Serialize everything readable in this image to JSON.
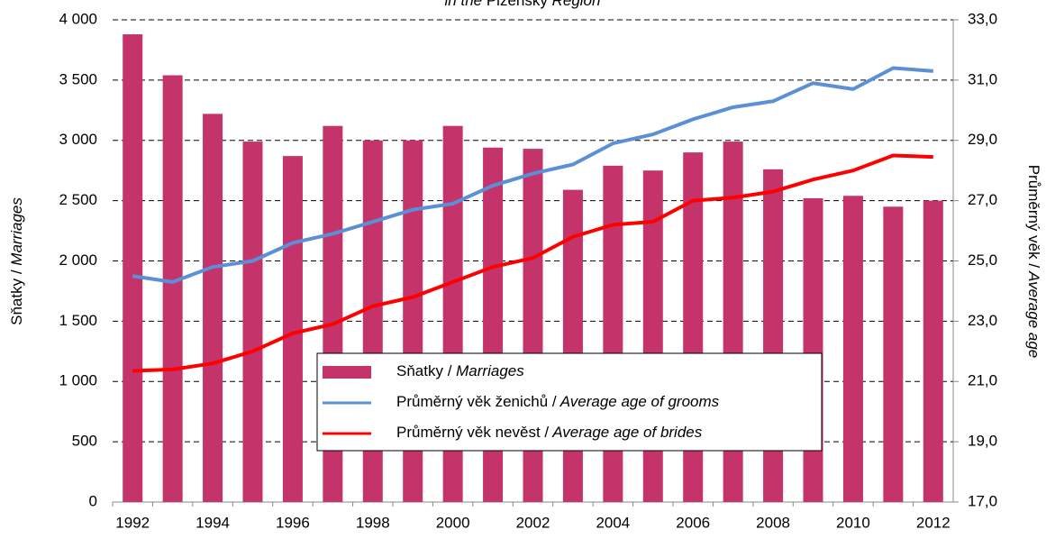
{
  "chart_data": {
    "type": "bar_line",
    "title": [
      "in the ",
      "Plzeňský ",
      "Region"
    ],
    "ylabel": "Sňatky / Marriages",
    "y2label": "Průměrný věk / Average  age",
    "categories": [
      "1992",
      null,
      "1994",
      null,
      "1996",
      null,
      "1998",
      null,
      "2000",
      null,
      "2002",
      null,
      "2004",
      null,
      "2006",
      null,
      "2008",
      null,
      "2010",
      null,
      "2012"
    ],
    "ylim": [
      0,
      4000
    ],
    "yticks": [
      0,
      500,
      {
        "value": 1000,
        "label": "1 000"
      },
      {
        "value": 1500,
        "label": "1 500"
      },
      {
        "value": 2000,
        "label": "2 000"
      },
      {
        "value": 2500,
        "label": "2 500"
      },
      {
        "value": 3000,
        "label": "3 000"
      },
      {
        "value": 3500,
        "label": "3 500"
      },
      {
        "value": 4000,
        "label": "4 000"
      }
    ],
    "y2lim": [
      17,
      33
    ],
    "y2ticks": [
      {
        "value": 17,
        "label": "17,0"
      },
      {
        "value": 19,
        "label": "19,0"
      },
      {
        "value": 21,
        "label": "21,0"
      },
      {
        "value": 23,
        "label": "23,0"
      },
      {
        "value": 25,
        "label": "25,0"
      },
      {
        "value": 27,
        "label": "27,0"
      },
      {
        "value": 29,
        "label": "29,0"
      },
      {
        "value": 31,
        "label": "31,0"
      },
      {
        "value": 33,
        "label": "33,0"
      }
    ],
    "grid": true,
    "series": [
      {
        "name": "Sňatky / Marriages",
        "type": "bar",
        "color": "#c4336a",
        "values": [
          3880,
          3540,
          3220,
          2990,
          2870,
          3120,
          3000,
          3000,
          3120,
          2940,
          2930,
          2590,
          2790,
          2750,
          2900,
          2990,
          2760,
          2520,
          2540,
          2450,
          2500
        ]
      },
      {
        "name": "Průměrný věk  ženichů / Average age of grooms",
        "type": "line",
        "axis": "y2",
        "color": "#5b8fd6",
        "values": [
          24.5,
          24.3,
          24.8,
          25.0,
          25.6,
          25.9,
          26.3,
          26.7,
          26.9,
          27.5,
          27.9,
          28.2,
          28.9,
          29.2,
          29.7,
          30.1,
          30.3,
          30.9,
          30.7,
          31.4,
          31.3
        ]
      },
      {
        "name": "Průměrný věk nevěst / Average age of brides",
        "type": "line",
        "axis": "y2",
        "color": "#ff0000",
        "values": [
          21.35,
          21.4,
          21.6,
          22.0,
          22.6,
          22.9,
          23.5,
          23.8,
          24.3,
          24.8,
          25.1,
          25.8,
          26.2,
          26.3,
          27.0,
          27.1,
          27.3,
          27.7,
          28.0,
          28.5,
          28.45
        ]
      }
    ]
  }
}
